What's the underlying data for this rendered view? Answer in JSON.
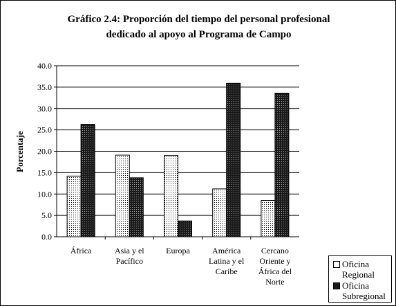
{
  "chart_data": {
    "type": "bar",
    "title_lines": [
      "Gráfico 2.4: Proporción del tiempo del personal profesional",
      "dedicado al apoyo al Programa de Campo"
    ],
    "xlabel": "",
    "ylabel": "Porcentaje",
    "categories": [
      [
        "África"
      ],
      [
        "Asia y el",
        "Pacífico"
      ],
      [
        "Europa"
      ],
      [
        "América",
        "Latina y el",
        "Caribe"
      ],
      [
        "Cercano",
        "Oriente y",
        "África del",
        "Norte"
      ]
    ],
    "series": [
      {
        "name": [
          "Oficina",
          "Regional"
        ],
        "values": [
          14.2,
          19.1,
          19.0,
          11.2,
          8.5
        ],
        "pattern": "dots"
      },
      {
        "name": [
          "Oficina",
          "Subregional"
        ],
        "values": [
          26.3,
          13.8,
          3.7,
          35.9,
          33.6
        ],
        "pattern": "dark"
      }
    ],
    "ylim": [
      0,
      40
    ],
    "yticks": [
      "0.0",
      "5.0",
      "10.0",
      "15.0",
      "20.0",
      "25.0",
      "30.0",
      "35.0",
      "40.0"
    ],
    "grid": true,
    "legend_position": "bottom-right"
  }
}
